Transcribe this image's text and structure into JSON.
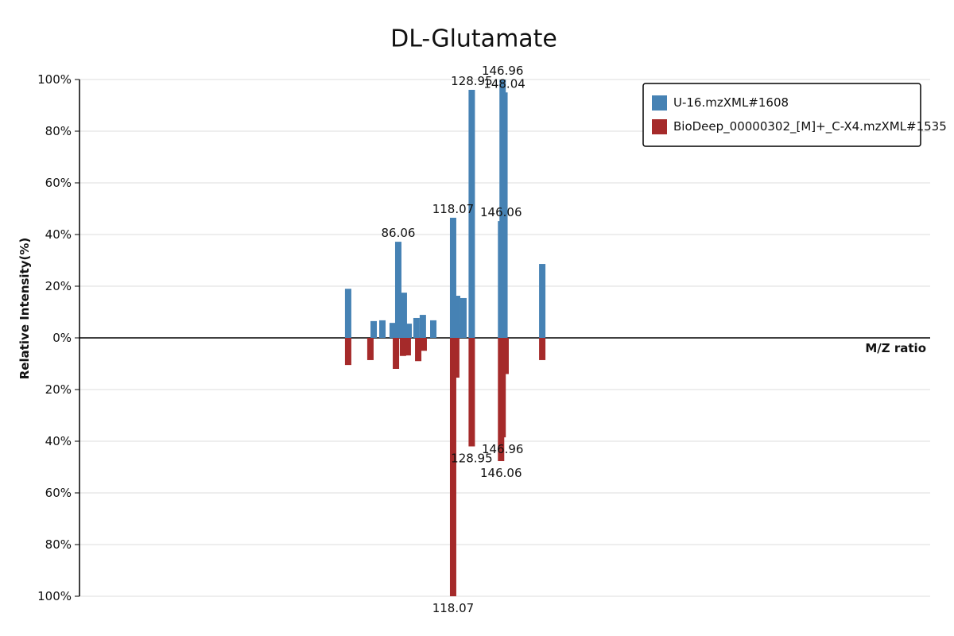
{
  "chart_data": {
    "type": "mirror-bar",
    "title": "DL-Glutamate",
    "x_label": "M/Z ratio",
    "y_label": "Relative Intensity(%)",
    "xlim": [
      -100,
      396.5
    ],
    "ylim": [
      -100,
      100
    ],
    "yticks": [
      {
        "value": 100,
        "label": "100%"
      },
      {
        "value": 80,
        "label": "80%"
      },
      {
        "value": 60,
        "label": "60%"
      },
      {
        "value": 40,
        "label": "40%"
      },
      {
        "value": 20,
        "label": "20%"
      },
      {
        "value": 0,
        "label": "0%"
      },
      {
        "value": -20,
        "label": "20%"
      },
      {
        "value": -40,
        "label": "40%"
      },
      {
        "value": -60,
        "label": "60%"
      },
      {
        "value": -80,
        "label": "80%"
      },
      {
        "value": -100,
        "label": "100%"
      }
    ],
    "grid": true,
    "legend": "top-right",
    "series": [
      {
        "name": "U-16.mzXML#1608",
        "color": "#4682b4",
        "x": [
          56.8,
          71.7,
          76.8,
          82.8,
          86.06,
          89.3,
          92.1,
          96.7,
          100.4,
          106.5,
          118.07,
          120.4,
          122.3,
          124.1,
          128.95,
          146.06,
          146.96,
          148.04,
          170.1
        ],
        "values": [
          19,
          6.5,
          6.8,
          5.8,
          37.2,
          17.5,
          5.5,
          7.7,
          8.9,
          6.8,
          46.5,
          16.3,
          5.2,
          15.4,
          96,
          45.2,
          100,
          95,
          28.6
        ],
        "labeled": [
          4,
          10,
          14,
          15,
          16,
          17
        ]
      },
      {
        "name": "BioDeep_00000302_[M]+_C-X4.mzXML#1535",
        "color": "#a52a2a",
        "x": [
          56.8,
          69.8,
          84.7,
          88.8,
          91.6,
          97.7,
          100.9,
          118.07,
          119.9,
          128.95,
          146.06,
          146.96,
          148.7,
          170.1
        ],
        "values": [
          -10.5,
          -8.6,
          -12,
          -7,
          -6.8,
          -9,
          -5,
          -100,
          -15.4,
          -42,
          -47.7,
          -38.5,
          -14,
          -8.6
        ],
        "labeled": [
          7,
          9,
          10,
          11
        ]
      }
    ]
  }
}
